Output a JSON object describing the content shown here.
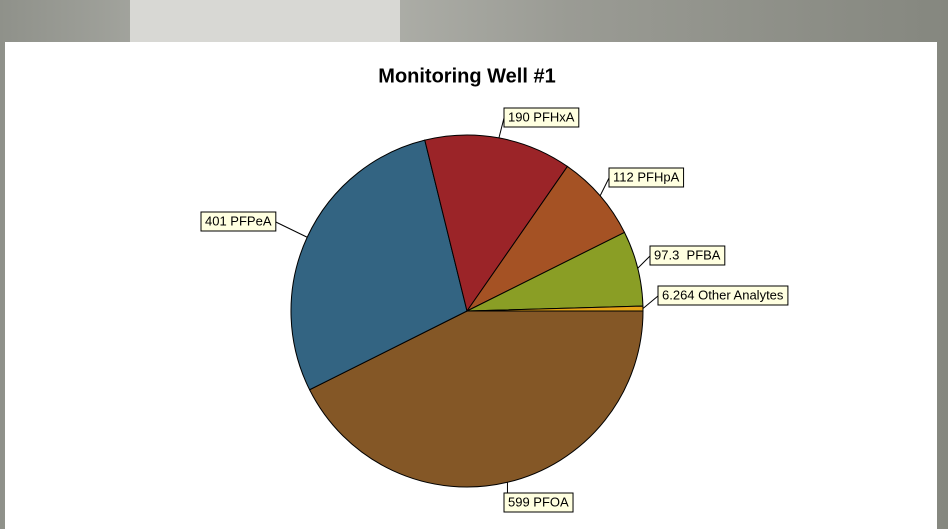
{
  "chart_data": {
    "type": "pie",
    "title": "Monitoring Well #1",
    "values": [
      599,
      401,
      190,
      112,
      97.3,
      6.264
    ],
    "value_labels": [
      "599 PFOA",
      "401 PFPeA",
      "190 PFHxA",
      "112 PFHpA",
      "97.3  PFBA",
      "6.264 Other Analytes"
    ],
    "colors": [
      "#845726",
      "#336482",
      "#9b2428",
      "#a55224",
      "#8a9e25",
      "#e8a317"
    ]
  }
}
